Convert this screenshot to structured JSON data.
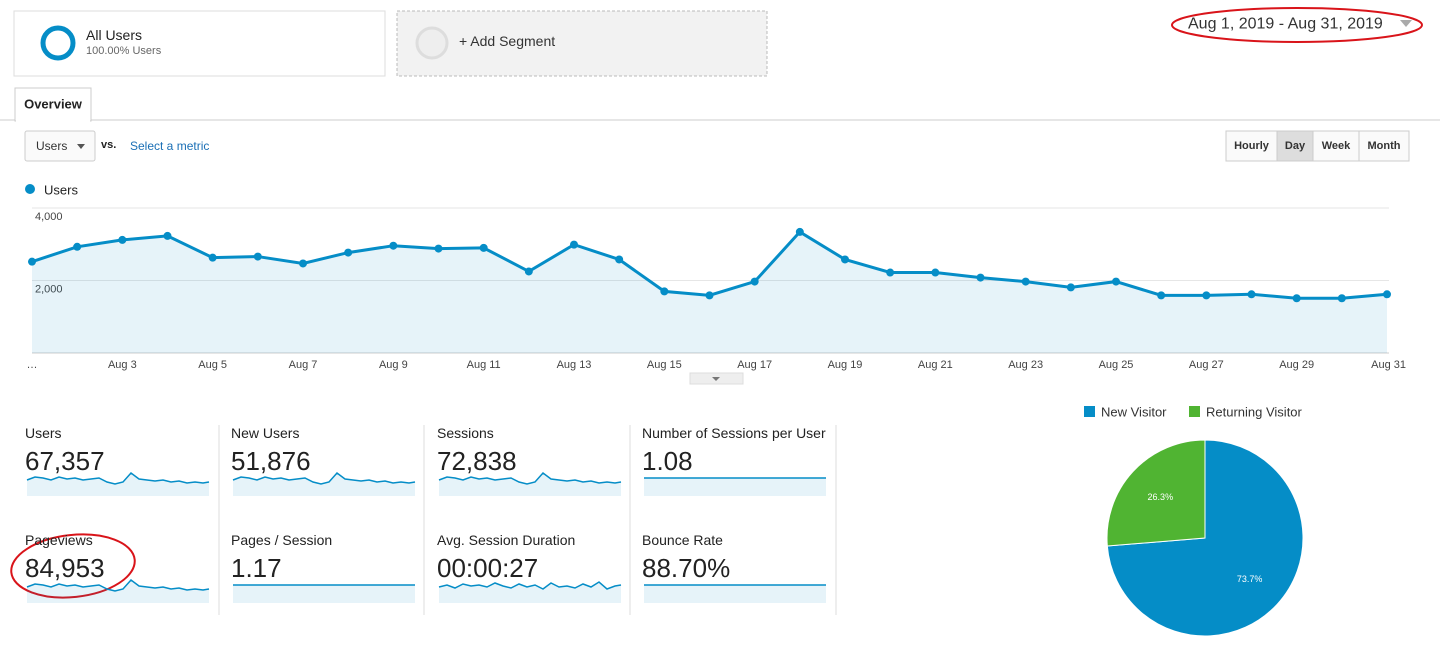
{
  "segments": [
    {
      "name": "All Users",
      "detail": "100.00% Users"
    },
    {
      "name": "+ Add Segment"
    }
  ],
  "date_range": "Aug 1, 2019 - Aug 31, 2019",
  "tabs": [
    "Overview"
  ],
  "metric_select": "Users",
  "vs": "vs.",
  "select_metric": "Select a metric",
  "granularity": [
    "Hourly",
    "Day",
    "Week",
    "Month"
  ],
  "chart_data": [
    {
      "type": "line",
      "categories": [
        "…",
        null,
        "Aug 3",
        null,
        "Aug 5",
        null,
        "Aug 7",
        null,
        "Aug 9",
        null,
        "Aug 11",
        null,
        "Aug 13",
        null,
        "Aug 15",
        null,
        "Aug 17",
        null,
        "Aug 19",
        null,
        "Aug 21",
        null,
        "Aug 23",
        null,
        "Aug 25",
        null,
        "Aug 27",
        null,
        "Aug 29",
        null,
        "Aug 31"
      ],
      "series": [
        {
          "name": "Users",
          "color": "#058dc7",
          "values": [
            2520,
            2930,
            3120,
            3230,
            2630,
            2660,
            2470,
            2770,
            2960,
            2880,
            2900,
            2250,
            2990,
            2580,
            1700,
            1590,
            1970,
            3340,
            2580,
            2220,
            2220,
            2080,
            1970,
            1810,
            1970,
            1590,
            1590,
            1620,
            1510,
            1510,
            1620
          ]
        }
      ],
      "ylim": [
        0,
        4000
      ],
      "yticks": [
        {
          "value": 2000,
          "label": "2,000"
        },
        {
          "value": 4000,
          "label": "4,000"
        }
      ],
      "grid": true
    },
    {
      "type": "pie",
      "categories": [
        "New Visitor",
        "Returning Visitor"
      ],
      "values": [
        73.7,
        26.3
      ],
      "value_labels": [
        "73.7%",
        "26.3%"
      ],
      "colors": [
        "#058dc7",
        "#50b432"
      ]
    }
  ],
  "metrics": [
    {
      "label": "Users",
      "value": "67,357"
    },
    {
      "label": "New Users",
      "value": "51,876"
    },
    {
      "label": "Sessions",
      "value": "72,838"
    },
    {
      "label": "Number of Sessions per User",
      "value": "1.08"
    },
    {
      "label": "Pageviews",
      "value": "84,953"
    },
    {
      "label": "Pages / Session",
      "value": "1.17"
    },
    {
      "label": "Avg. Session Duration",
      "value": "00:00:27"
    },
    {
      "label": "Bounce Rate",
      "value": "88.70%"
    }
  ]
}
